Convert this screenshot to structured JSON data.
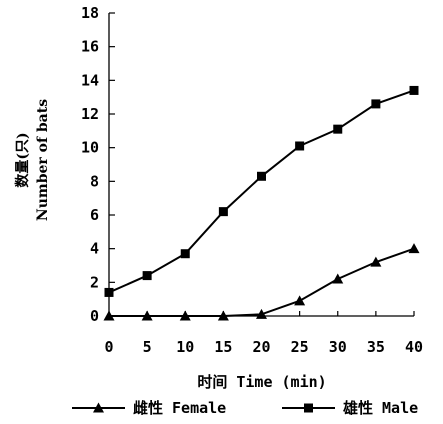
{
  "chart_data": {
    "type": "line",
    "xlabel": "时间 Time (min)",
    "ylabel_cn": "数量(只)",
    "ylabel_en": "Number of bats",
    "x": [
      0,
      5,
      10,
      15,
      20,
      25,
      30,
      35,
      40
    ],
    "x_ticks": [
      "0",
      "5",
      "10",
      "15",
      "20",
      "25",
      "30",
      "35",
      "40"
    ],
    "y_ticks": [
      "0",
      "2",
      "4",
      "6",
      "8",
      "10",
      "12",
      "14",
      "16",
      "18"
    ],
    "xlim": [
      0,
      40
    ],
    "ylim": [
      0,
      18
    ],
    "grid": false,
    "legend_position": "bottom",
    "series": [
      {
        "name": "雌性 Female",
        "marker": "triangle",
        "color": "#000000",
        "values": [
          0,
          0,
          0,
          0,
          0.1,
          0.9,
          2.2,
          3.2,
          4.0
        ]
      },
      {
        "name": "雄性 Male",
        "marker": "square",
        "color": "#000000",
        "values": [
          1.4,
          2.4,
          3.7,
          6.2,
          8.3,
          10.1,
          11.1,
          12.6,
          13.4
        ]
      }
    ]
  }
}
